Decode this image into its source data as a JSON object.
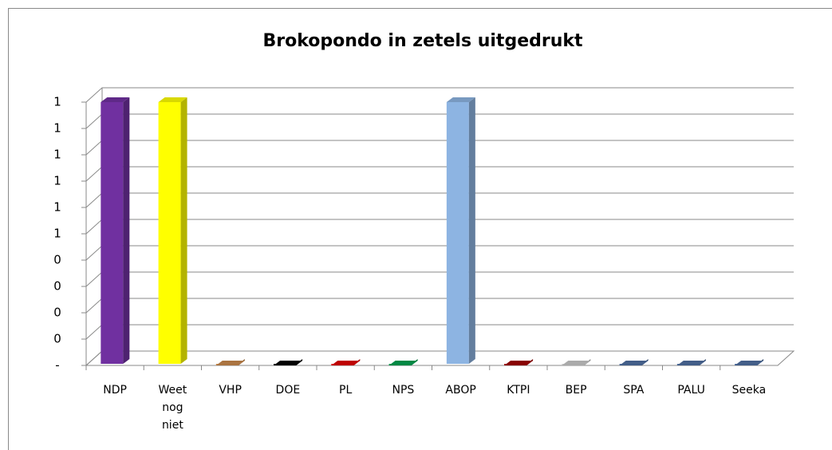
{
  "chart_data": {
    "type": "bar",
    "title": "Brokopondo in zetels uitgedrukt",
    "categories": [
      "NDP",
      "Weet nog niet",
      "VHP",
      "DOE",
      "PL",
      "NPS",
      "ABOP",
      "KTPI",
      "BEP",
      "SPA",
      "PALU",
      "Seeka"
    ],
    "values": [
      1,
      1,
      0,
      0,
      0,
      0,
      1,
      0,
      0,
      0,
      0,
      0
    ],
    "colors": [
      "#7030a0",
      "#ffff00",
      "#c8884c",
      "#000000",
      "#e00000",
      "#00a050",
      "#8db4e2",
      "#a00000",
      "#c8c8c8",
      "#4f6fa0",
      "#4f6fa0",
      "#4f6fa0"
    ],
    "ylim": [
      0,
      1
    ],
    "yticks": [
      {
        "value": 0,
        "label": "-"
      },
      {
        "value": 0.1,
        "label": "0"
      },
      {
        "value": 0.2,
        "label": "0"
      },
      {
        "value": 0.3,
        "label": "0"
      },
      {
        "value": 0.4,
        "label": "0"
      },
      {
        "value": 0.5,
        "label": "1"
      },
      {
        "value": 0.6,
        "label": "1"
      },
      {
        "value": 0.7,
        "label": "1"
      },
      {
        "value": 0.8,
        "label": "1"
      },
      {
        "value": 0.9,
        "label": "1"
      },
      {
        "value": 1,
        "label": "1"
      }
    ],
    "grid": true
  }
}
